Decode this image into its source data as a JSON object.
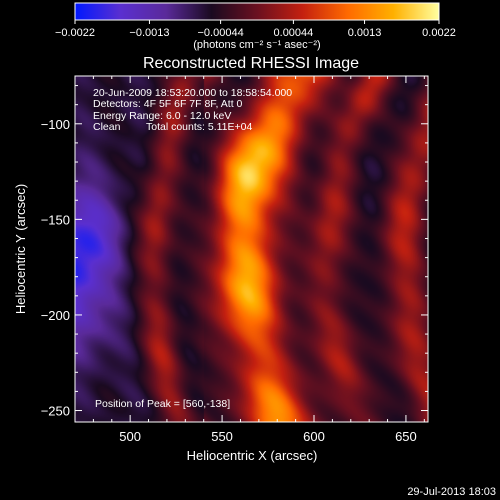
{
  "chart_data": {
    "type": "heatmap",
    "title": "Reconstructed RHESSI Image",
    "xlabel": "Heliocentric X (arcsec)",
    "ylabel": "Heliocentric Y (arcsec)",
    "xlim": [
      470,
      662
    ],
    "ylim": [
      -256,
      -75
    ],
    "x_ticks": [
      500,
      550,
      600,
      650
    ],
    "y_ticks": [
      -100,
      -150,
      -200,
      -250
    ],
    "colorbar": {
      "min": -0.0022,
      "max": 0.0022,
      "ticks": [
        -0.0022,
        -0.0013,
        -0.00044,
        0.00044,
        0.0013,
        0.0022
      ],
      "tick_labels": [
        "−0.0022",
        "−0.0013",
        "−0.00044",
        "0.00044",
        "0.0013",
        "0.0022"
      ],
      "unit_label": "(photons cm⁻² s⁻¹ asec⁻²)",
      "colors": [
        "#0018ff",
        "#5a2fd0",
        "#5a2a9a",
        "#1a0a20",
        "#6a1020",
        "#c42010",
        "#ff6a00",
        "#ffb000",
        "#ffffa0"
      ]
    },
    "annotations": [
      "20-Jun-2009 18:53:20.000 to 18:58:54.000",
      "Detectors: 4F 5F 6F 7F 8F, Att 0",
      "Energy Range: 6.0 - 12.0 keV",
      "Clean",
      "Total counts: 5.11E+04"
    ],
    "peak": {
      "label": "Position of Peak = [560,-138]",
      "x": 560,
      "y": -138
    },
    "features": [
      {
        "kind": "bright-arc",
        "x_center": 563,
        "width": 14,
        "amplitude": 1.0,
        "note": "main emission band"
      },
      {
        "kind": "bright-arc",
        "x_center": 513,
        "width": 7,
        "amplitude": 0.48,
        "note": "inner ring"
      },
      {
        "kind": "bright-arc",
        "x_center": 607,
        "width": 8,
        "amplitude": 0.5,
        "note": "outer ring"
      },
      {
        "kind": "bright-arc",
        "x_center": 648,
        "width": 9,
        "amplitude": 0.55,
        "note": "outermost ring"
      },
      {
        "kind": "negative-blob",
        "x": 472,
        "y": -172,
        "amplitude": -0.8
      }
    ],
    "grid": false,
    "legend": "none"
  },
  "footer": {
    "timestamp": "29-Jul-2013 18:03"
  }
}
